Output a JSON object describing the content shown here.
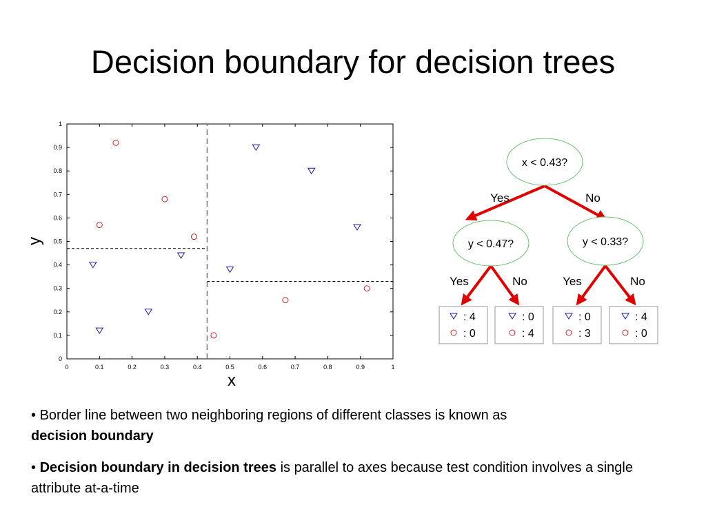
{
  "slide": {
    "title": "Decision boundary for decision trees",
    "bullets": [
      {
        "marker": "•",
        "text": "Border line between two neighboring regions of different classes is known as",
        "bold_text": "decision boundary"
      },
      {
        "marker": "•",
        "bold_text": "Decision boundary in decision trees",
        "text": "is parallel to axes because test condition involves a single attribute at-a-time"
      }
    ]
  },
  "chart_data": {
    "type": "scatter",
    "xlabel": "x",
    "ylabel": "y",
    "xlim": [
      0,
      1
    ],
    "ylim": [
      0,
      1
    ],
    "xticks": [
      0,
      0.1,
      0.2,
      0.3,
      0.4,
      0.5,
      0.6,
      0.7,
      0.8,
      0.9,
      1
    ],
    "yticks": [
      0,
      0.1,
      0.2,
      0.3,
      0.4,
      0.5,
      0.6,
      0.7,
      0.8,
      0.9,
      1
    ],
    "grid": false,
    "series": [
      {
        "marker": "triangle-down",
        "color": "#1a1aa6",
        "points": [
          {
            "x": 0.08,
            "y": 0.4
          },
          {
            "x": 0.1,
            "y": 0.12
          },
          {
            "x": 0.25,
            "y": 0.2
          },
          {
            "x": 0.35,
            "y": 0.44
          },
          {
            "x": 0.5,
            "y": 0.38
          },
          {
            "x": 0.58,
            "y": 0.9
          },
          {
            "x": 0.75,
            "y": 0.8
          },
          {
            "x": 0.89,
            "y": 0.56
          }
        ]
      },
      {
        "marker": "circle",
        "color": "#d22020",
        "points": [
          {
            "x": 0.15,
            "y": 0.92
          },
          {
            "x": 0.1,
            "y": 0.57
          },
          {
            "x": 0.3,
            "y": 0.68
          },
          {
            "x": 0.39,
            "y": 0.52
          },
          {
            "x": 0.45,
            "y": 0.1
          },
          {
            "x": 0.67,
            "y": 0.25
          },
          {
            "x": 0.92,
            "y": 0.3
          }
        ]
      }
    ],
    "boundaries": [
      {
        "orientation": "vertical",
        "x": 0.43,
        "y_range": [
          0,
          1
        ],
        "style": "long-dash"
      },
      {
        "orientation": "horizontal",
        "y": 0.47,
        "x_range": [
          0,
          0.43
        ],
        "style": "short-dash"
      },
      {
        "orientation": "horizontal",
        "y": 0.33,
        "x_range": [
          0.43,
          1
        ],
        "style": "short-dash"
      }
    ]
  },
  "tree": {
    "root": {
      "label": "x < 0.43?"
    },
    "root_yes_label": "Yes",
    "root_no_label": "No",
    "left": {
      "label": "y < 0.47?",
      "yes_label": "Yes",
      "no_label": "No"
    },
    "right": {
      "label": "y < 0.33?",
      "yes_label": "Yes",
      "no_label": "No"
    },
    "leaves": [
      {
        "triangle_count": ": 4",
        "circle_count": ": 0"
      },
      {
        "triangle_count": ": 0",
        "circle_count": ": 4"
      },
      {
        "triangle_count": ": 0",
        "circle_count": ": 3"
      },
      {
        "triangle_count": ": 4",
        "circle_count": ": 0"
      }
    ],
    "edge_color": "#e00000",
    "node_border_color": "#6cbf6c"
  }
}
